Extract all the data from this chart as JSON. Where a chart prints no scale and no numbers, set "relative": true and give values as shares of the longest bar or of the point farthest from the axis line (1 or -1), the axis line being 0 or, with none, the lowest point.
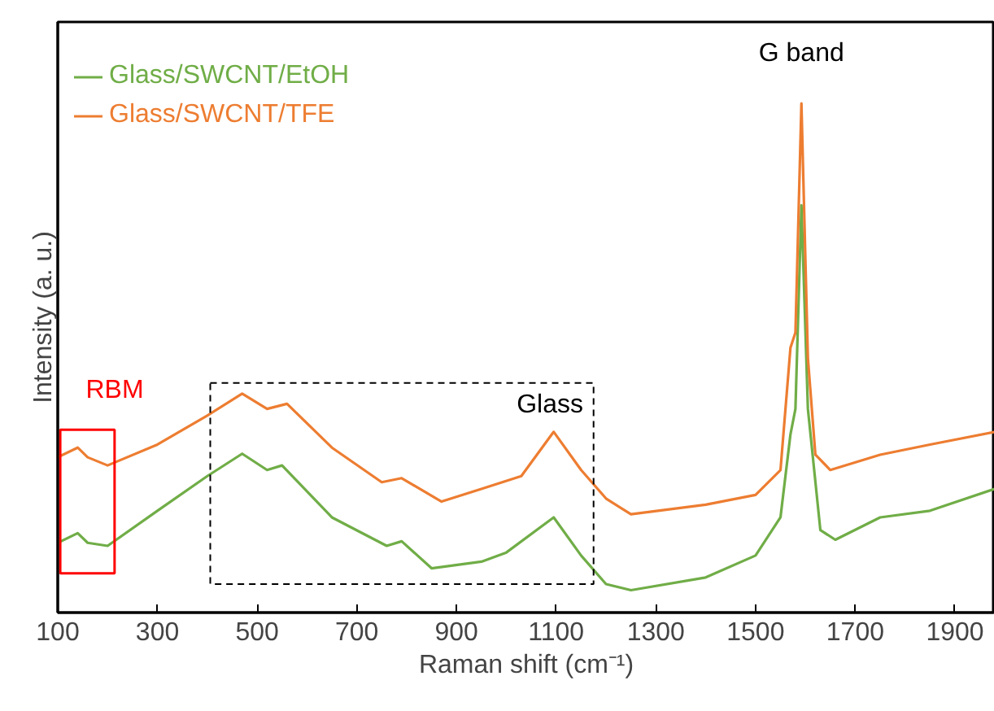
{
  "chart_data": {
    "type": "line",
    "relative": true,
    "xlabel": "Raman shift (cm⁻¹)",
    "ylabel": "Intensity (a. u.)",
    "xlim": [
      100,
      1980
    ],
    "xticks": [
      100,
      300,
      500,
      700,
      900,
      1100,
      1300,
      1500,
      1700,
      1900
    ],
    "tick_labels": "x",
    "grid": false,
    "legend": "top left",
    "line_style": "solid",
    "annotations": [
      {
        "text": "G band",
        "x": 1592,
        "y": 1.0
      },
      "RBM",
      "Glass"
    ],
    "series": [
      {
        "name": "Glass/SWCNT/EtOH",
        "color": "#70ad47",
        "x": [
          100,
          140,
          160,
          200,
          300,
          400,
          470,
          520,
          550,
          650,
          760,
          790,
          850,
          950,
          1000,
          1095,
          1150,
          1200,
          1250,
          1400,
          1500,
          1550,
          1570,
          1580,
          1592,
          1605,
          1630,
          1660,
          1750,
          1850,
          1980
        ],
        "values": [
          0.137,
          0.156,
          0.137,
          0.131,
          0.2,
          0.268,
          0.312,
          0.28,
          0.289,
          0.187,
          0.131,
          0.14,
          0.087,
          0.1,
          0.118,
          0.187,
          0.112,
          0.056,
          0.044,
          0.069,
          0.112,
          0.187,
          0.35,
          0.4,
          0.8,
          0.4,
          0.162,
          0.143,
          0.187,
          0.2,
          0.243
        ]
      },
      {
        "name": "Glass/SWCNT/TFE",
        "color": "#ed7d31",
        "x": [
          100,
          140,
          160,
          200,
          300,
          400,
          470,
          520,
          560,
          650,
          750,
          790,
          870,
          950,
          1030,
          1095,
          1150,
          1200,
          1250,
          1400,
          1500,
          1550,
          1570,
          1580,
          1592,
          1605,
          1620,
          1650,
          1750,
          1850,
          1980
        ],
        "values": [
          0.305,
          0.324,
          0.305,
          0.289,
          0.33,
          0.387,
          0.43,
          0.4,
          0.41,
          0.324,
          0.256,
          0.264,
          0.218,
          0.243,
          0.268,
          0.355,
          0.28,
          0.224,
          0.193,
          0.212,
          0.231,
          0.28,
          0.52,
          0.55,
          1.0,
          0.5,
          0.31,
          0.28,
          0.31,
          0.33,
          0.355
        ]
      }
    ]
  }
}
